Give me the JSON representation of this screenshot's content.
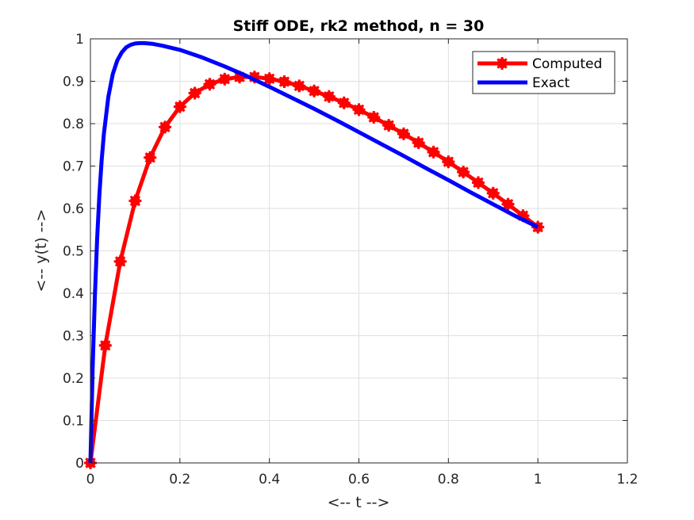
{
  "chart_data": {
    "type": "line",
    "title": "Stiff ODE, rk2 method, n = 30",
    "xlabel": "<-- t -->",
    "ylabel": "<-- y(t) -->",
    "xlim": [
      0,
      1.2
    ],
    "ylim": [
      0,
      1
    ],
    "xticks": [
      "0",
      "0.2",
      "0.4",
      "0.6",
      "0.8",
      "1",
      "1.2"
    ],
    "yticks": [
      "0",
      "0.1",
      "0.2",
      "0.3",
      "0.4",
      "0.5",
      "0.6",
      "0.7",
      "0.8",
      "0.9",
      "1"
    ],
    "grid": true,
    "legend_position": "top-right",
    "series": [
      {
        "name": "Computed",
        "color": "#ff0000",
        "marker": "asterisk",
        "x": [
          0,
          0.0333,
          0.0667,
          0.1,
          0.1333,
          0.1667,
          0.2,
          0.2333,
          0.2667,
          0.3,
          0.3333,
          0.3667,
          0.4,
          0.4333,
          0.4667,
          0.5,
          0.5333,
          0.5667,
          0.6,
          0.6333,
          0.6667,
          0.7,
          0.7333,
          0.7667,
          0.8,
          0.8333,
          0.8667,
          0.9,
          0.9333,
          0.9667,
          1.0
        ],
        "y": [
          0,
          0.277,
          0.475,
          0.618,
          0.72,
          0.792,
          0.84,
          0.872,
          0.893,
          0.905,
          0.91,
          0.91,
          0.906,
          0.899,
          0.889,
          0.877,
          0.864,
          0.849,
          0.833,
          0.815,
          0.796,
          0.776,
          0.755,
          0.733,
          0.71,
          0.686,
          0.661,
          0.636,
          0.61,
          0.583,
          0.556
        ]
      },
      {
        "name": "Exact",
        "color": "#0000ff",
        "x": [
          0,
          0.005,
          0.01,
          0.015,
          0.02,
          0.025,
          0.03,
          0.04,
          0.05,
          0.06,
          0.07,
          0.08,
          0.09,
          0.1,
          0.11,
          0.12,
          0.14,
          0.16,
          0.2,
          0.25,
          0.3,
          0.35,
          0.4,
          0.45,
          0.5,
          0.55,
          0.6,
          0.65,
          0.7,
          0.75,
          0.8,
          0.85,
          0.9,
          0.95,
          1.0
        ],
        "y": [
          0,
          0.223,
          0.394,
          0.528,
          0.632,
          0.712,
          0.775,
          0.863,
          0.917,
          0.949,
          0.968,
          0.98,
          0.986,
          0.989,
          0.99,
          0.99,
          0.988,
          0.984,
          0.974,
          0.956,
          0.935,
          0.912,
          0.887,
          0.861,
          0.835,
          0.808,
          0.78,
          0.752,
          0.724,
          0.695,
          0.667,
          0.638,
          0.61,
          0.582,
          0.556
        ]
      }
    ]
  }
}
